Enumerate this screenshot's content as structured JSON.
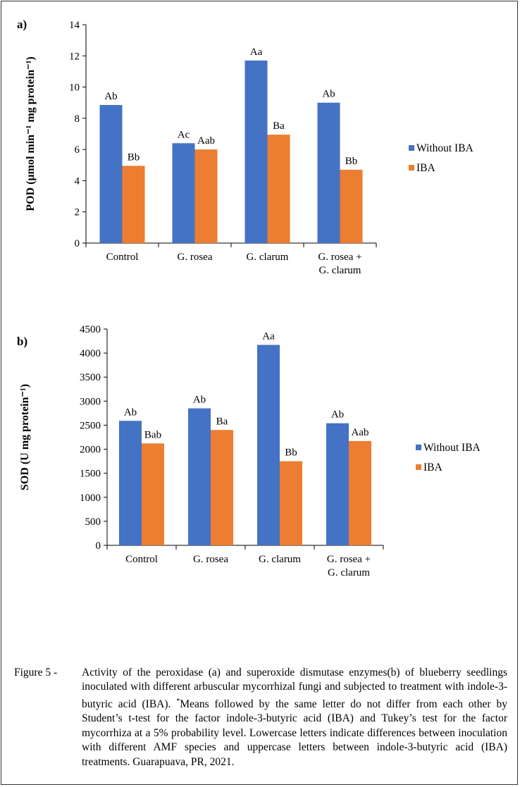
{
  "colors": {
    "without_iba": "#4472C4",
    "iba": "#ED7D31",
    "axis": "#000000"
  },
  "chart_data": [
    {
      "type": "bar",
      "panel_label": "a)",
      "ylabel": "POD (µmol min⁻¹ mg protein⁻¹)",
      "ylim": [
        0,
        14
      ],
      "yticks": [
        0,
        2,
        4,
        6,
        8,
        10,
        12,
        14
      ],
      "categories": [
        [
          "Control"
        ],
        [
          "G. rosea"
        ],
        [
          "G. clarum"
        ],
        [
          "G. rosea +",
          "G. clarum"
        ]
      ],
      "series": [
        {
          "name": "Without IBA",
          "values": [
            8.85,
            6.4,
            11.7,
            9.0
          ],
          "labels": [
            "Ab",
            "Ac",
            "Aa",
            "Ab"
          ]
        },
        {
          "name": "IBA",
          "values": [
            4.95,
            6.0,
            6.95,
            4.7
          ],
          "labels": [
            "Bb",
            "Aab",
            "Ba",
            "Bb"
          ]
        }
      ],
      "legend": "right",
      "grid": false
    },
    {
      "type": "bar",
      "panel_label": "b)",
      "ylabel": "SOD (U mg protein⁻¹)",
      "ylim": [
        0,
        4500
      ],
      "yticks": [
        0,
        500,
        1000,
        1500,
        2000,
        2500,
        3000,
        3500,
        4000,
        4500
      ],
      "categories": [
        [
          "Control"
        ],
        [
          "G. rosea"
        ],
        [
          "G. clarum"
        ],
        [
          "G. rosea +",
          "G. clarum"
        ]
      ],
      "series": [
        {
          "name": "Without IBA",
          "values": [
            2590,
            2850,
            4170,
            2540
          ],
          "labels": [
            "Ab",
            "Ab",
            "Aa",
            "Ab"
          ]
        },
        {
          "name": "IBA",
          "values": [
            2120,
            2400,
            1750,
            2170
          ],
          "labels": [
            "Bab",
            "Ba",
            "Bb",
            "Aab"
          ]
        }
      ],
      "legend": "right",
      "grid": false
    }
  ],
  "caption": {
    "prefix": "Figure 5 - ",
    "text_1": "Activity of the peroxidase (a) and superoxide dismutase enzymes(b) of blueberry seedlings inoculated with different arbuscular mycorrhizal fungi and subjected to treatment with indole-3-butyric acid (IBA).",
    "asterisk": "*",
    "text_2": "Means followed by the same letter do not differ from each other by Student’s t-test for the factor indole-3-butyric acid (IBA) and Tukey’s test for the factor mycorrhiza at a 5% probability level. Lowercase letters indicate differences between inoculation with different AMF species and uppercase letters between indole-3-butyric acid (IBA) treatments. Guarapuava, PR, 2021."
  }
}
